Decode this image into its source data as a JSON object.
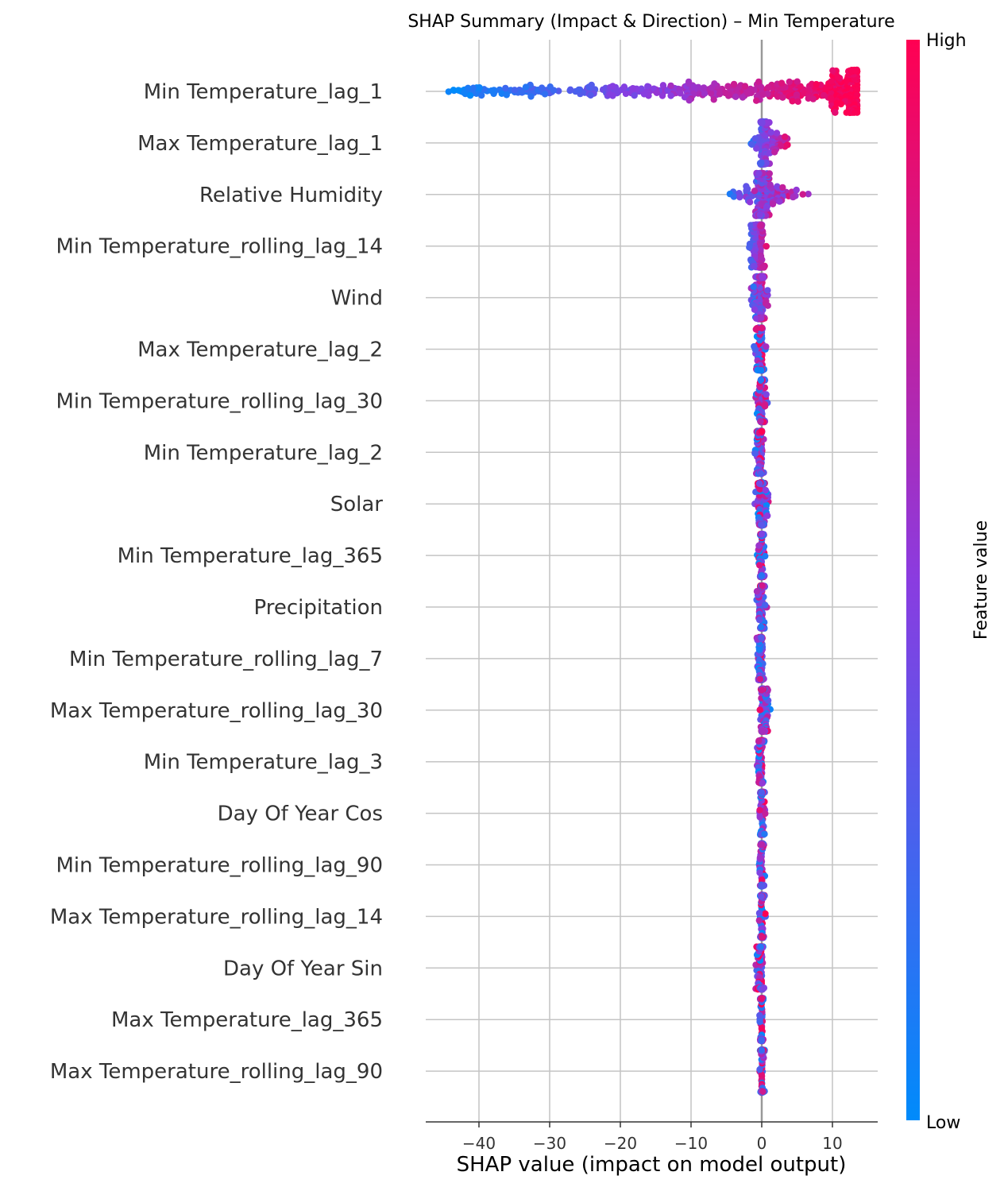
{
  "chart_data": {
    "type": "scatter",
    "subtype": "shap-beeswarm",
    "title": "SHAP Summary (Impact & Direction) – Min Temperature",
    "xlabel": "SHAP value (impact on model output)",
    "xlim": [
      -47.5,
      16.5
    ],
    "xticks": [
      -40,
      -30,
      -20,
      -10,
      0,
      10
    ],
    "xtick_labels": [
      "−40",
      "−30",
      "−20",
      "−10",
      "0",
      "10"
    ],
    "grid": "vertical and horizontal",
    "colorbar": {
      "label": "Feature value",
      "high_label": "High",
      "low_label": "Low",
      "low_color": "#008bfb",
      "high_color": "#ff0052"
    },
    "features": [
      {
        "name": "Min Temperature_lag_1",
        "shap_min": -45,
        "shap_max": 13.5,
        "trend": 1
      },
      {
        "name": "Max Temperature_lag_1",
        "shap_min": -2.5,
        "shap_max": 4.5,
        "trend": 0.8
      },
      {
        "name": "Relative Humidity",
        "shap_min": -6.5,
        "shap_max": 7.5,
        "trend": 0.6
      },
      {
        "name": "Min Temperature_rolling_lag_14",
        "shap_min": -2.5,
        "shap_max": 1.0,
        "trend": 0.9
      },
      {
        "name": "Wind",
        "shap_min": -2.0,
        "shap_max": 1.5,
        "trend": 0.5
      },
      {
        "name": "Max Temperature_lag_2",
        "shap_min": -1.3,
        "shap_max": 0.8,
        "trend": 0.2
      },
      {
        "name": "Min Temperature_rolling_lag_30",
        "shap_min": -1.0,
        "shap_max": 1.0,
        "trend": 0.2
      },
      {
        "name": "Min Temperature_lag_2",
        "shap_min": -1.2,
        "shap_max": 0.4,
        "trend": 0.3
      },
      {
        "name": "Solar",
        "shap_min": -1.2,
        "shap_max": 1.2,
        "trend": -0.1
      },
      {
        "name": "Min Temperature_lag_365",
        "shap_min": -0.7,
        "shap_max": 0.6,
        "trend": 0.2
      },
      {
        "name": "Precipitation",
        "shap_min": -1.0,
        "shap_max": 1.0,
        "trend": -0.2
      },
      {
        "name": "Min Temperature_rolling_lag_7",
        "shap_min": -0.9,
        "shap_max": 0.6,
        "trend": 0.3
      },
      {
        "name": "Max Temperature_rolling_lag_30",
        "shap_min": -0.5,
        "shap_max": 1.3,
        "trend": -0.2
      },
      {
        "name": "Min Temperature_lag_3",
        "shap_min": -0.8,
        "shap_max": 0.5,
        "trend": 0.2
      },
      {
        "name": "Day Of Year Cos",
        "shap_min": -0.5,
        "shap_max": 0.6,
        "trend": 0.1
      },
      {
        "name": "Min Temperature_rolling_lag_90",
        "shap_min": -0.5,
        "shap_max": 0.5,
        "trend": 0.2
      },
      {
        "name": "Max Temperature_rolling_lag_14",
        "shap_min": -0.5,
        "shap_max": 0.6,
        "trend": 0.1
      },
      {
        "name": "Day Of Year Sin",
        "shap_min": -1.0,
        "shap_max": 0.5,
        "trend": -0.1
      },
      {
        "name": "Max Temperature_lag_365",
        "shap_min": -0.4,
        "shap_max": 0.4,
        "trend": 0.1
      },
      {
        "name": "Max Temperature_rolling_lag_90",
        "shap_min": -0.4,
        "shap_max": 0.5,
        "trend": 0.1
      }
    ]
  }
}
